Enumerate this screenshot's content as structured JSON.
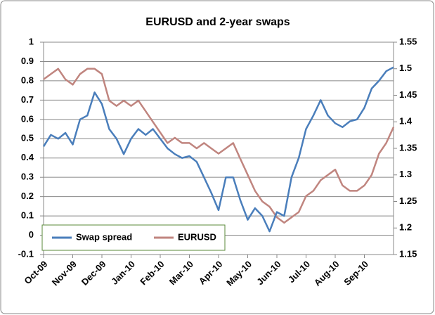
{
  "chart_data": {
    "type": "line",
    "title": "EURUSD and 2-year swaps",
    "categories": [
      "Oct-09",
      null,
      null,
      null,
      "Nov-09",
      null,
      null,
      null,
      "Dec-09",
      null,
      null,
      null,
      "Jan-10",
      null,
      null,
      null,
      "Feb-10",
      null,
      null,
      null,
      "Mar-10",
      null,
      null,
      null,
      "Apr-10",
      null,
      null,
      null,
      "May-10",
      null,
      null,
      null,
      "Jun-10",
      null,
      null,
      null,
      "Jul-10",
      null,
      null,
      null,
      "Aug-10",
      null,
      null,
      null,
      "Sep-10",
      null,
      null,
      null,
      null
    ],
    "series": [
      {
        "name": "Swap spread",
        "color": "#4a7ebb",
        "values": [
          0.46,
          0.52,
          0.5,
          0.53,
          0.47,
          0.6,
          0.62,
          0.74,
          0.68,
          0.55,
          0.5,
          0.42,
          0.5,
          0.55,
          0.52,
          0.55,
          0.5,
          0.45,
          0.42,
          0.4,
          0.41,
          0.38,
          0.3,
          0.22,
          0.13,
          0.3,
          0.3,
          0.18,
          0.08,
          0.14,
          0.1,
          0.02,
          0.12,
          0.1,
          0.3,
          0.4,
          0.55,
          0.62,
          0.7,
          0.62,
          0.58,
          0.56,
          0.59,
          0.6,
          0.66,
          0.76,
          0.8,
          0.85,
          0.87
        ]
      },
      {
        "name": "EURUSD",
        "color": "#c0857f",
        "axis": "y2",
        "values": [
          1.48,
          1.49,
          1.5,
          1.48,
          1.47,
          1.49,
          1.5,
          1.5,
          1.49,
          1.44,
          1.43,
          1.44,
          1.43,
          1.44,
          1.42,
          1.4,
          1.38,
          1.36,
          1.37,
          1.36,
          1.36,
          1.35,
          1.36,
          1.35,
          1.34,
          1.35,
          1.36,
          1.33,
          1.3,
          1.27,
          1.25,
          1.24,
          1.22,
          1.21,
          1.22,
          1.23,
          1.26,
          1.27,
          1.29,
          1.3,
          1.31,
          1.28,
          1.27,
          1.27,
          1.28,
          1.3,
          1.34,
          1.36,
          1.39
        ]
      }
    ],
    "ylim": [
      -0.1,
      1
    ],
    "yticks": [
      -0.1,
      0,
      0.1,
      0.2,
      0.3,
      0.4,
      0.5,
      0.6,
      0.7,
      0.8,
      0.9,
      1
    ],
    "y2lim": [
      1.15,
      1.55
    ],
    "y2ticks": [
      1.15,
      1.2,
      1.25,
      1.3,
      1.35,
      1.4,
      1.45,
      1.5,
      1.55
    ],
    "grid": true,
    "legend": "bottom-left"
  }
}
